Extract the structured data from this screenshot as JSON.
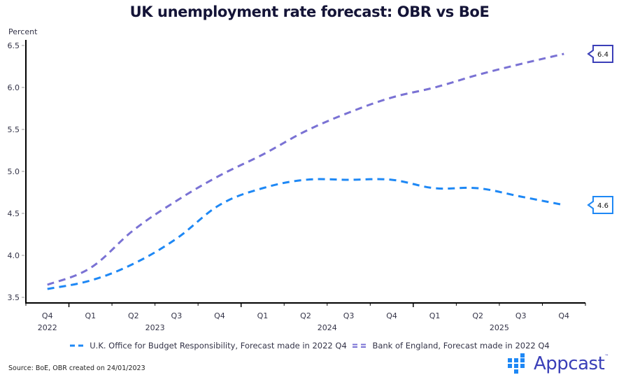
{
  "chart_data": {
    "type": "line",
    "title": "UK unemployment rate forecast: OBR vs BoE",
    "ylabel": "Percent",
    "xlabel": "",
    "ylim": [
      3.5,
      6.5
    ],
    "yticks": [
      3.5,
      4.0,
      4.5,
      5.0,
      5.5,
      6.0,
      6.5
    ],
    "ytick_labels": [
      "3.5",
      "4.0",
      "4.5",
      "5.0",
      "5.5",
      "6.0",
      "6.5"
    ],
    "categories": [
      "Q4 2022",
      "Q1 2023",
      "Q2 2023",
      "Q3 2023",
      "Q4 2023",
      "Q1 2024",
      "Q2 2024",
      "Q3 2024",
      "Q4 2024",
      "Q1 2025",
      "Q2 2025",
      "Q3 2025",
      "Q4 2025"
    ],
    "quarter_labels": [
      "Q4",
      "Q1",
      "Q2",
      "Q3",
      "Q4",
      "Q1",
      "Q2",
      "Q3",
      "Q4",
      "Q1",
      "Q2",
      "Q3",
      "Q4"
    ],
    "year_labels": [
      {
        "label": "2022",
        "center_index": 0
      },
      {
        "label": "2023",
        "center_index": 2.5
      },
      {
        "label": "2024",
        "center_index": 6.5
      },
      {
        "label": "2025",
        "center_index": 10.5
      }
    ],
    "year_separator_indices": [
      0.5,
      4.5,
      8.5
    ],
    "grid": false,
    "legend_position": "bottom",
    "series": [
      {
        "name": "U.K. Office for Budget Responsibility, Forecast made in 2022 Q4",
        "color": "#1e88f5",
        "style": "dashed",
        "values": [
          3.6,
          3.7,
          3.9,
          4.2,
          4.6,
          4.8,
          4.9,
          4.9,
          4.9,
          4.8,
          4.8,
          4.7,
          4.6
        ],
        "end_label": "4.6",
        "end_label_border": "#1e88f5"
      },
      {
        "name": "Bank of England, Forecast made in 2022 Q4",
        "color": "#7a72d4",
        "style": "dashed",
        "values": [
          3.65,
          3.85,
          4.3,
          4.65,
          4.95,
          5.2,
          5.48,
          5.7,
          5.88,
          6.0,
          6.15,
          6.28,
          6.4
        ],
        "end_label": "6.4",
        "end_label_border": "#3b3fb8"
      }
    ]
  },
  "footer": {
    "source": "Source: BoE, OBR created on 24/01/2023",
    "logo_text": "Appcast",
    "logo_tm": "™",
    "logo_color": "#3a3fb8",
    "logo_icon": "appcast-grid-icon"
  }
}
